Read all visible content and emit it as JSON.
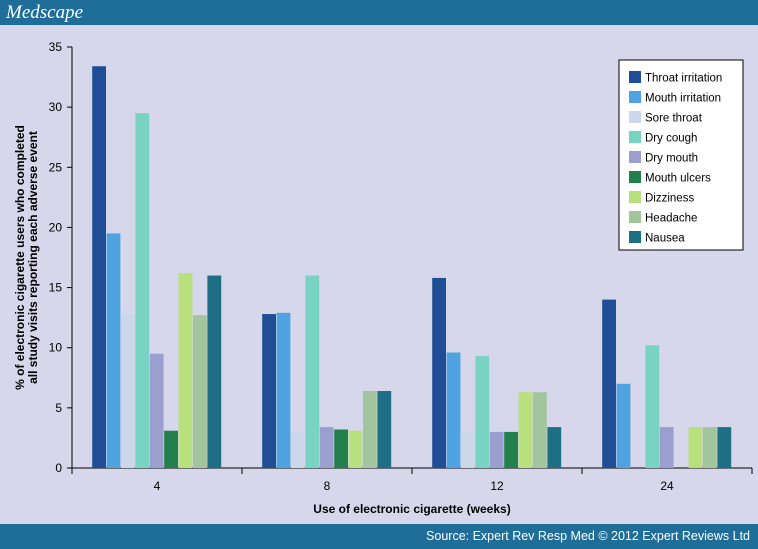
{
  "header": {
    "brand": "Medscape"
  },
  "footer": {
    "source": "Source: Expert Rev Resp Med © 2012 Expert Reviews Ltd"
  },
  "colors": {
    "panel_bg": "#d6d7ea",
    "bar_brand": "#1f6e9a"
  },
  "chart_data": {
    "type": "bar",
    "title": "",
    "xlabel": "Use of electronic cigarette (weeks)",
    "ylabel_lines": [
      "% of electronic cigarette users who completed",
      "all study visits reporting each adverse event"
    ],
    "categories": [
      "4",
      "8",
      "12",
      "24"
    ],
    "ylim": [
      0,
      35
    ],
    "yticks": [
      0,
      5,
      10,
      15,
      20,
      25,
      30,
      35
    ],
    "grid": false,
    "legend_position": "top-right",
    "series": [
      {
        "name": "Throat irritation",
        "color": "#1f4e96",
        "values": [
          33.4,
          12.8,
          15.8,
          14.0
        ]
      },
      {
        "name": "Mouth irritation",
        "color": "#4fa3e0",
        "values": [
          19.5,
          12.9,
          9.6,
          7.0
        ]
      },
      {
        "name": "Sore throat",
        "color": "#ccd7ea",
        "values": [
          12.8,
          3.0,
          3.0,
          0
        ]
      },
      {
        "name": "Dry cough",
        "color": "#79d3c2",
        "values": [
          29.5,
          16.0,
          9.3,
          10.2
        ]
      },
      {
        "name": "Dry mouth",
        "color": "#9a9fd0",
        "values": [
          9.5,
          3.4,
          3.0,
          3.4
        ]
      },
      {
        "name": "Mouth ulcers",
        "color": "#23804d",
        "values": [
          3.1,
          3.2,
          3.0,
          0
        ]
      },
      {
        "name": "Dizziness",
        "color": "#b8e07c",
        "values": [
          16.2,
          3.1,
          6.3,
          3.4
        ]
      },
      {
        "name": "Headache",
        "color": "#a3c59d",
        "values": [
          12.7,
          6.4,
          6.3,
          3.4
        ]
      },
      {
        "name": "Nausea",
        "color": "#1e6f86",
        "values": [
          16.0,
          6.4,
          3.4,
          3.4
        ]
      }
    ]
  }
}
